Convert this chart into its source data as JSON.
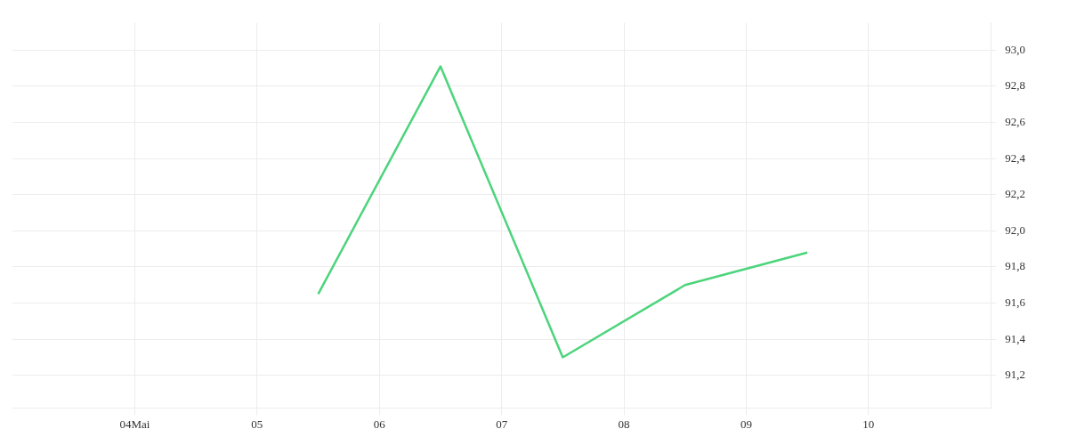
{
  "chart_data": {
    "type": "line",
    "x": [
      "--05-05T12:00",
      "--05-06T12:00",
      "--05-07T12:00",
      "--05-08T12:00",
      "--05-09T12:00"
    ],
    "series": [
      {
        "color": "#4cd47c",
        "values": [
          91.65,
          92.91,
          91.3,
          91.7,
          91.88
        ]
      }
    ],
    "xlim": [
      "--05-03",
      "--05-11"
    ],
    "xticks": [
      {
        "value": "--05-04",
        "label": "04Mai"
      },
      {
        "value": "--05-05",
        "label": "05"
      },
      {
        "value": "--05-06",
        "label": "06"
      },
      {
        "value": "--05-07",
        "label": "07"
      },
      {
        "value": "--05-08",
        "label": "08"
      },
      {
        "value": "--05-09",
        "label": "09"
      },
      {
        "value": "--05-10",
        "label": "10"
      }
    ],
    "ylim": [
      91.02,
      93.15
    ],
    "yticks": [
      {
        "value": 91.2,
        "label": "91,2"
      },
      {
        "value": 91.4,
        "label": "91,4"
      },
      {
        "value": 91.6,
        "label": "91,6"
      },
      {
        "value": 91.8,
        "label": "91,8"
      },
      {
        "value": 92,
        "label": "92,0"
      },
      {
        "value": 92.2,
        "label": "92,2"
      },
      {
        "value": 92.4,
        "label": "92,4"
      },
      {
        "value": 92.6,
        "label": "92,6"
      },
      {
        "value": 92.8,
        "label": "92,8"
      },
      {
        "value": 93,
        "label": "93,0"
      }
    ],
    "grid": true,
    "legend": false,
    "marker": "none",
    "line_style": "solid"
  }
}
